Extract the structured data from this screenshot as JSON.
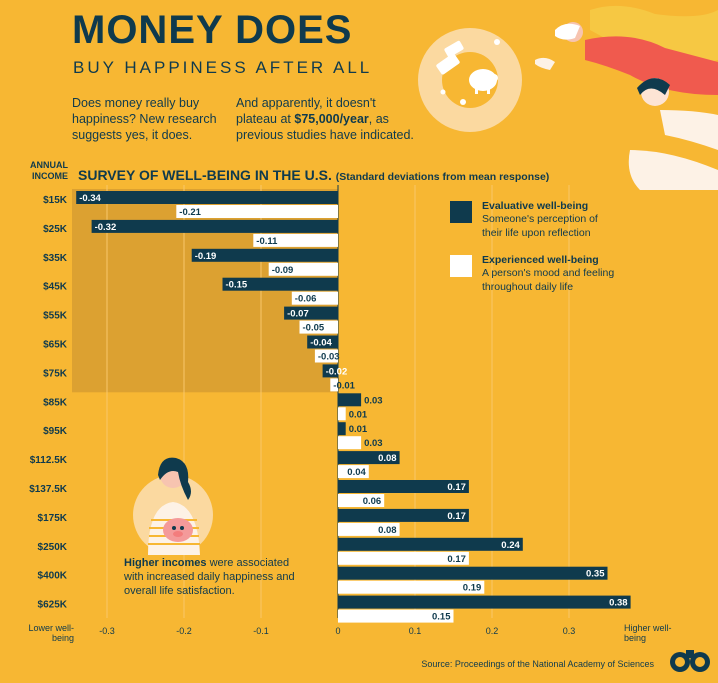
{
  "header": {
    "title": "MONEY DOES",
    "subtitle": "BUY HAPPINESS AFTER ALL",
    "intro_left": "Does money really buy happiness? New research suggests yes, it does.",
    "intro_right_before": "And apparently, it doesn't plateau at ",
    "intro_right_bold": "$75,000/year",
    "intro_right_after": ", as previous studies have indicated."
  },
  "legend": {
    "evaluative_name": "Evaluative well-being",
    "evaluative_desc": "Someone's perception of their life upon reflection",
    "experienced_name": "Experienced well-being",
    "experienced_desc": "A person's mood and feeling throughout daily life"
  },
  "note": {
    "bold": "Higher incomes",
    "text": " were associated with increased daily happiness and overall life satisfaction."
  },
  "source": "Source: Proceedings of the National Academy of Sciences",
  "colors": {
    "background": "#f7b733",
    "shade": "#dca131",
    "navy": "#0f3a4d",
    "white": "#ffffff"
  },
  "chart_data": {
    "type": "bar",
    "orientation": "horizontal",
    "title": "SURVEY OF WELL-BEING IN THE U.S.",
    "subtitle": "(Standard deviations from mean response)",
    "ylabel": "ANNUAL INCOME",
    "xlabel_left": "Lower well-being",
    "xlabel_right": "Higher well-being",
    "xlim": [
      -0.34,
      0.38
    ],
    "xticks": [
      "-0.3",
      "-0.2",
      "-0.1",
      "0",
      "0.1",
      "0.2",
      "0.3"
    ],
    "xtick_values": [
      -0.3,
      -0.2,
      -0.1,
      0,
      0.1,
      0.2,
      0.3
    ],
    "categories": [
      "$15K",
      "$25K",
      "$35K",
      "$45K",
      "$55K",
      "$65K",
      "$75K",
      "$85K",
      "$95K",
      "$112.5K",
      "$137.5K",
      "$175K",
      "$250K",
      "$400K",
      "$625K"
    ],
    "series": [
      {
        "name": "Evaluative well-being",
        "color": "#0f3a4d",
        "values": [
          -0.34,
          -0.32,
          -0.19,
          -0.15,
          -0.07,
          -0.04,
          -0.02,
          0.03,
          0.01,
          0.08,
          0.17,
          0.17,
          0.24,
          0.35,
          0.38
        ],
        "labels": [
          "-0.34",
          "-0.32",
          "-0.19",
          "-0.15",
          "-0.07",
          "-0.04",
          "-0.02",
          "0.03",
          "0.01",
          "0.08",
          "0.17",
          "0.17",
          "0.24",
          "0.35",
          "0.38"
        ]
      },
      {
        "name": "Experienced well-being",
        "color": "#ffffff",
        "values": [
          -0.21,
          -0.11,
          -0.09,
          -0.06,
          -0.05,
          -0.03,
          -0.01,
          0.01,
          0.03,
          0.04,
          0.06,
          0.08,
          0.17,
          0.19,
          0.15
        ],
        "labels": [
          "-0.21",
          "-0.11",
          "-0.09",
          "-0.06",
          "-0.05",
          "-0.03",
          "-0.01",
          "0.01",
          "0.03",
          "0.04",
          "0.06",
          "0.08",
          "0.17",
          "0.19",
          "0.15"
        ]
      }
    ],
    "shaded_range": [
      "$15K",
      "$75K"
    ],
    "grid": true,
    "legend_position": "top-right"
  }
}
